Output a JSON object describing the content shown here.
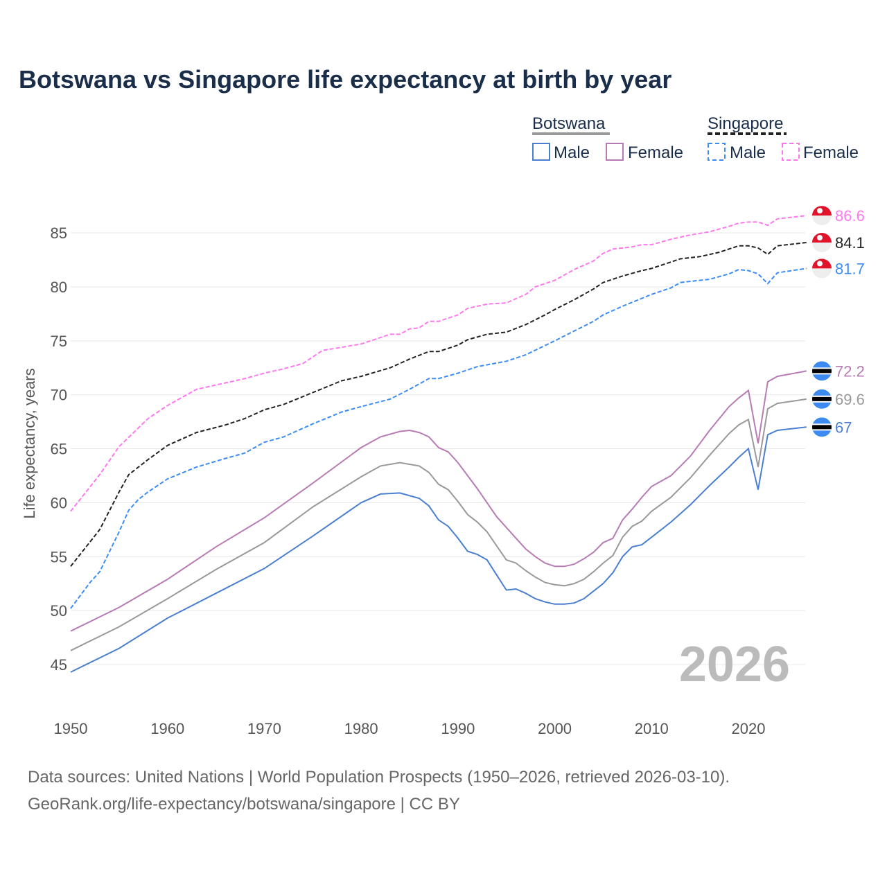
{
  "title": "Botswana vs Singapore life expectancy at birth by year",
  "legend": {
    "groups": [
      {
        "name": "Botswana",
        "items": [
          "Male",
          "Female"
        ]
      },
      {
        "name": "Singapore",
        "items": [
          "Male",
          "Female"
        ]
      }
    ]
  },
  "watermark_year": "2026",
  "footer": {
    "line1": "Data sources: United Nations | World Population Prospects (1950–2026, retrieved 2026-03-10).",
    "line2": "GeoRank.org/life-expectancy/botswana/singapore | CC BY"
  },
  "chart_data": {
    "type": "line",
    "title": "Botswana vs Singapore life expectancy at birth by year",
    "xlabel": "",
    "ylabel": "Life expectancy, years",
    "xlim": [
      1950,
      2026
    ],
    "ylim": [
      42,
      89
    ],
    "xticks": [
      1950,
      1960,
      1970,
      1980,
      1990,
      2000,
      2010,
      2020
    ],
    "yticks": [
      45,
      50,
      55,
      60,
      65,
      70,
      75,
      80,
      85
    ],
    "grid": true,
    "legend_position": "top-right",
    "series": [
      {
        "name": "Singapore Female",
        "country": "Singapore",
        "color": "#ff77ee",
        "dashed": true,
        "end_label": "86.6",
        "x": [
          1950,
          1953,
          1955,
          1958,
          1960,
          1963,
          1966,
          1968,
          1970,
          1972,
          1974,
          1976,
          1978,
          1980,
          1983,
          1984,
          1985,
          1986,
          1987,
          1988,
          1990,
          1991,
          1993,
          1995,
          1997,
          1998,
          2000,
          2002,
          2004,
          2005,
          2006,
          2008,
          2009,
          2010,
          2012,
          2014,
          2016,
          2018,
          2019,
          2020,
          2021,
          2022,
          2023,
          2026
        ],
        "y": [
          59.2,
          62.6,
          65.2,
          67.8,
          69.0,
          70.5,
          71.1,
          71.5,
          72.0,
          72.4,
          72.9,
          74.1,
          74.4,
          74.7,
          75.6,
          75.6,
          76.1,
          76.2,
          76.8,
          76.8,
          77.4,
          78.0,
          78.4,
          78.5,
          79.3,
          80.0,
          80.6,
          81.6,
          82.4,
          83.1,
          83.5,
          83.7,
          83.9,
          83.9,
          84.4,
          84.8,
          85.1,
          85.6,
          85.9,
          86.0,
          86.0,
          85.7,
          86.3,
          86.6
        ]
      },
      {
        "name": "Singapore",
        "country": "Singapore",
        "color": "#222222",
        "dashed": true,
        "end_label": "84.1",
        "x": [
          1950,
          1953,
          1955,
          1956,
          1958,
          1960,
          1963,
          1966,
          1968,
          1970,
          1972,
          1975,
          1978,
          1980,
          1983,
          1985,
          1987,
          1988,
          1990,
          1991,
          1993,
          1995,
          1997,
          1999,
          2000,
          2002,
          2004,
          2005,
          2007,
          2009,
          2010,
          2013,
          2015,
          2017,
          2019,
          2020,
          2021,
          2022,
          2023,
          2026
        ],
        "y": [
          54.1,
          57.5,
          61.0,
          62.6,
          64.0,
          65.3,
          66.5,
          67.2,
          67.8,
          68.6,
          69.1,
          70.2,
          71.3,
          71.7,
          72.5,
          73.3,
          74.0,
          74.0,
          74.6,
          75.1,
          75.6,
          75.8,
          76.5,
          77.4,
          77.9,
          78.8,
          79.8,
          80.4,
          81.0,
          81.5,
          81.7,
          82.6,
          82.8,
          83.2,
          83.8,
          83.8,
          83.6,
          83.0,
          83.8,
          84.1
        ]
      },
      {
        "name": "Singapore Male",
        "country": "Singapore",
        "color": "#3b8cf5",
        "dashed": true,
        "end_label": "81.7",
        "x": [
          1950,
          1952,
          1953,
          1955,
          1956,
          1957,
          1958,
          1960,
          1963,
          1966,
          1968,
          1970,
          1972,
          1975,
          1978,
          1980,
          1983,
          1985,
          1987,
          1988,
          1990,
          1992,
          1995,
          1997,
          2000,
          2002,
          2004,
          2005,
          2007,
          2010,
          2012,
          2013,
          2016,
          2018,
          2019,
          2020,
          2021,
          2022,
          2023,
          2026
        ],
        "y": [
          50.2,
          52.6,
          53.6,
          57.3,
          59.3,
          60.3,
          61.0,
          62.2,
          63.3,
          64.1,
          64.6,
          65.6,
          66.1,
          67.3,
          68.4,
          68.9,
          69.6,
          70.5,
          71.5,
          71.5,
          72.0,
          72.6,
          73.1,
          73.7,
          75.0,
          75.9,
          76.8,
          77.4,
          78.2,
          79.3,
          79.9,
          80.4,
          80.7,
          81.2,
          81.6,
          81.5,
          81.2,
          80.3,
          81.3,
          81.7
        ]
      },
      {
        "name": "Botswana Female",
        "country": "Botswana",
        "color": "#b77bb4",
        "dashed": false,
        "end_label": "72.2",
        "x": [
          1950,
          1955,
          1960,
          1965,
          1970,
          1975,
          1980,
          1982,
          1984,
          1985,
          1986,
          1987,
          1988,
          1989,
          1990,
          1991,
          1992,
          1993,
          1994,
          1995,
          1996,
          1997,
          1998,
          1999,
          2000,
          2001,
          2002,
          2003,
          2004,
          2005,
          2006,
          2007,
          2008,
          2009,
          2010,
          2012,
          2014,
          2016,
          2018,
          2019,
          2020,
          2021,
          2022,
          2023,
          2026
        ],
        "y": [
          48.1,
          50.3,
          52.9,
          55.9,
          58.6,
          61.8,
          65.1,
          66.1,
          66.6,
          66.7,
          66.5,
          66.1,
          65.1,
          64.7,
          63.7,
          62.5,
          61.3,
          60.0,
          58.7,
          57.7,
          56.7,
          55.7,
          55.0,
          54.4,
          54.1,
          54.1,
          54.3,
          54.8,
          55.4,
          56.3,
          56.7,
          58.4,
          59.4,
          60.5,
          61.5,
          62.5,
          64.3,
          66.7,
          68.9,
          69.7,
          70.4,
          65.5,
          71.2,
          71.7,
          72.2
        ]
      },
      {
        "name": "Botswana",
        "country": "Botswana",
        "color": "#999999",
        "dashed": false,
        "end_label": "69.6",
        "x": [
          1950,
          1955,
          1960,
          1965,
          1970,
          1975,
          1980,
          1982,
          1984,
          1986,
          1987,
          1988,
          1989,
          1990,
          1991,
          1992,
          1993,
          1994,
          1995,
          1996,
          1997,
          1998,
          1999,
          2000,
          2001,
          2002,
          2003,
          2004,
          2005,
          2006,
          2007,
          2008,
          2009,
          2010,
          2012,
          2014,
          2016,
          2018,
          2019,
          2020,
          2021,
          2022,
          2023,
          2026
        ],
        "y": [
          46.3,
          48.5,
          51.1,
          53.8,
          56.3,
          59.6,
          62.4,
          63.4,
          63.7,
          63.4,
          62.8,
          61.7,
          61.2,
          60.1,
          58.9,
          58.2,
          57.3,
          56.0,
          54.7,
          54.4,
          53.7,
          53.1,
          52.6,
          52.4,
          52.3,
          52.5,
          52.9,
          53.6,
          54.4,
          55.1,
          56.8,
          57.8,
          58.3,
          59.2,
          60.5,
          62.3,
          64.4,
          66.4,
          67.2,
          67.7,
          63.3,
          68.7,
          69.2,
          69.6
        ]
      },
      {
        "name": "Botswana Male",
        "country": "Botswana",
        "color": "#4a7fd0",
        "dashed": false,
        "end_label": "67",
        "x": [
          1950,
          1955,
          1960,
          1965,
          1970,
          1975,
          1980,
          1982,
          1984,
          1986,
          1987,
          1988,
          1989,
          1990,
          1991,
          1992,
          1993,
          1994,
          1995,
          1996,
          1997,
          1998,
          1999,
          2000,
          2001,
          2002,
          2003,
          2004,
          2005,
          2006,
          2007,
          2008,
          2009,
          2010,
          2012,
          2014,
          2016,
          2018,
          2019,
          2020,
          2021,
          2022,
          2023,
          2026
        ],
        "y": [
          44.3,
          46.5,
          49.3,
          51.6,
          53.9,
          56.9,
          60.0,
          60.8,
          60.9,
          60.4,
          59.7,
          58.4,
          57.8,
          56.7,
          55.5,
          55.2,
          54.7,
          53.3,
          51.9,
          52.0,
          51.6,
          51.1,
          50.8,
          50.6,
          50.6,
          50.7,
          51.1,
          51.8,
          52.5,
          53.5,
          55.0,
          55.9,
          56.1,
          56.8,
          58.2,
          59.8,
          61.6,
          63.3,
          64.2,
          65.0,
          61.2,
          66.3,
          66.7,
          67.0
        ]
      }
    ]
  }
}
